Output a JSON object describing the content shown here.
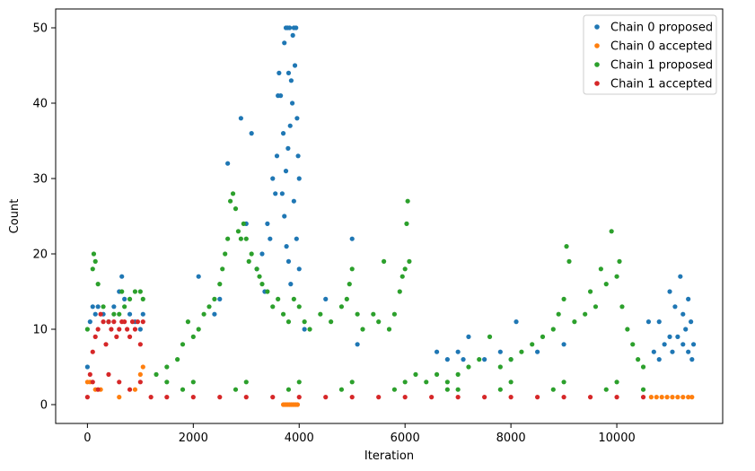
{
  "chart_data": {
    "type": "scatter",
    "xlabel": "Iteration",
    "ylabel": "Count",
    "xlim": [
      -600,
      12000
    ],
    "ylim": [
      -2.5,
      52.5
    ],
    "xticks": [
      0,
      2000,
      4000,
      6000,
      8000,
      10000
    ],
    "yticks": [
      0,
      10,
      20,
      30,
      40,
      50
    ],
    "legend_position": "top-right",
    "grid": false,
    "series": [
      {
        "name": "Chain 0 proposed",
        "color": "#1f77b4",
        "points": [
          [
            0,
            5
          ],
          [
            50,
            11
          ],
          [
            100,
            13
          ],
          [
            150,
            12
          ],
          [
            200,
            13
          ],
          [
            300,
            12
          ],
          [
            400,
            11
          ],
          [
            500,
            13
          ],
          [
            600,
            15
          ],
          [
            650,
            17
          ],
          [
            700,
            14
          ],
          [
            800,
            12
          ],
          [
            900,
            11
          ],
          [
            1000,
            10
          ],
          [
            1050,
            12
          ],
          [
            2100,
            17
          ],
          [
            2400,
            12
          ],
          [
            2500,
            14
          ],
          [
            2650,
            32
          ],
          [
            2900,
            38
          ],
          [
            3000,
            24
          ],
          [
            3100,
            36
          ],
          [
            3200,
            18
          ],
          [
            3300,
            20
          ],
          [
            3350,
            15
          ],
          [
            3400,
            24
          ],
          [
            3450,
            22
          ],
          [
            3500,
            30
          ],
          [
            3550,
            28
          ],
          [
            3580,
            33
          ],
          [
            3600,
            41
          ],
          [
            3620,
            44
          ],
          [
            3650,
            41
          ],
          [
            3700,
            36
          ],
          [
            3720,
            48
          ],
          [
            3750,
            50
          ],
          [
            3780,
            50
          ],
          [
            3800,
            44
          ],
          [
            3820,
            50
          ],
          [
            3850,
            43
          ],
          [
            3870,
            40
          ],
          [
            3880,
            49
          ],
          [
            3900,
            50
          ],
          [
            3920,
            45
          ],
          [
            3940,
            50
          ],
          [
            3960,
            38
          ],
          [
            3980,
            33
          ],
          [
            4000,
            30
          ],
          [
            3750,
            31
          ],
          [
            3790,
            34
          ],
          [
            3830,
            37
          ],
          [
            3680,
            28
          ],
          [
            3720,
            25
          ],
          [
            3760,
            21
          ],
          [
            3800,
            19
          ],
          [
            3840,
            16
          ],
          [
            3900,
            27
          ],
          [
            3950,
            22
          ],
          [
            4000,
            18
          ],
          [
            4100,
            10
          ],
          [
            4500,
            14
          ],
          [
            5000,
            22
          ],
          [
            5100,
            8
          ],
          [
            6600,
            7
          ],
          [
            6800,
            6
          ],
          [
            7000,
            7
          ],
          [
            7100,
            6
          ],
          [
            7200,
            9
          ],
          [
            7500,
            6
          ],
          [
            7800,
            7
          ],
          [
            8000,
            6
          ],
          [
            8100,
            11
          ],
          [
            8500,
            7
          ],
          [
            9000,
            8
          ],
          [
            10600,
            11
          ],
          [
            10800,
            11
          ],
          [
            11000,
            15
          ],
          [
            11100,
            13
          ],
          [
            11200,
            17
          ],
          [
            11250,
            12
          ],
          [
            11300,
            10
          ],
          [
            11350,
            14
          ],
          [
            11400,
            11
          ],
          [
            11450,
            8
          ],
          [
            10700,
            7
          ],
          [
            10800,
            6
          ],
          [
            10900,
            8
          ],
          [
            11000,
            9
          ],
          [
            11050,
            7
          ],
          [
            11150,
            9
          ],
          [
            11250,
            8
          ],
          [
            11350,
            7
          ],
          [
            11420,
            6
          ]
        ]
      },
      {
        "name": "Chain 0 accepted",
        "color": "#ff7f0e",
        "points": [
          [
            0,
            3
          ],
          [
            50,
            3
          ],
          [
            150,
            2
          ],
          [
            250,
            2
          ],
          [
            600,
            1
          ],
          [
            900,
            2
          ],
          [
            1000,
            4
          ],
          [
            1050,
            5
          ],
          [
            3700,
            0
          ],
          [
            3730,
            0
          ],
          [
            3760,
            0
          ],
          [
            3790,
            0
          ],
          [
            3820,
            0
          ],
          [
            3850,
            0
          ],
          [
            3880,
            0
          ],
          [
            3910,
            0
          ],
          [
            3940,
            0
          ],
          [
            3970,
            0
          ],
          [
            10650,
            1
          ],
          [
            10750,
            1
          ],
          [
            10850,
            1
          ],
          [
            10950,
            1
          ],
          [
            11050,
            1
          ],
          [
            11150,
            1
          ],
          [
            11250,
            1
          ],
          [
            11350,
            1
          ],
          [
            11420,
            1
          ]
        ]
      },
      {
        "name": "Chain 1 proposed",
        "color": "#2ca02c",
        "points": [
          [
            0,
            10
          ],
          [
            100,
            18
          ],
          [
            120,
            20
          ],
          [
            150,
            19
          ],
          [
            200,
            16
          ],
          [
            300,
            13
          ],
          [
            400,
            11
          ],
          [
            500,
            12
          ],
          [
            600,
            12
          ],
          [
            650,
            15
          ],
          [
            700,
            13
          ],
          [
            800,
            14
          ],
          [
            900,
            15
          ],
          [
            1000,
            15
          ],
          [
            1050,
            14
          ],
          [
            1300,
            4
          ],
          [
            1500,
            5
          ],
          [
            1700,
            6
          ],
          [
            1800,
            8
          ],
          [
            1900,
            11
          ],
          [
            2000,
            9
          ],
          [
            2100,
            10
          ],
          [
            2200,
            12
          ],
          [
            2300,
            13
          ],
          [
            2400,
            14
          ],
          [
            2500,
            16
          ],
          [
            2550,
            18
          ],
          [
            2600,
            20
          ],
          [
            2650,
            22
          ],
          [
            2700,
            27
          ],
          [
            2750,
            28
          ],
          [
            2800,
            26
          ],
          [
            2850,
            23
          ],
          [
            2900,
            22
          ],
          [
            2950,
            24
          ],
          [
            3000,
            22
          ],
          [
            3050,
            19
          ],
          [
            3100,
            20
          ],
          [
            3200,
            18
          ],
          [
            3250,
            17
          ],
          [
            3300,
            16
          ],
          [
            3400,
            15
          ],
          [
            3500,
            13
          ],
          [
            3600,
            14
          ],
          [
            3700,
            12
          ],
          [
            3800,
            11
          ],
          [
            3900,
            14
          ],
          [
            4000,
            13
          ],
          [
            4100,
            11
          ],
          [
            4200,
            10
          ],
          [
            4400,
            12
          ],
          [
            4600,
            11
          ],
          [
            4800,
            13
          ],
          [
            4900,
            14
          ],
          [
            4950,
            16
          ],
          [
            5000,
            18
          ],
          [
            5100,
            12
          ],
          [
            5200,
            10
          ],
          [
            5400,
            12
          ],
          [
            5500,
            11
          ],
          [
            5600,
            19
          ],
          [
            5700,
            10
          ],
          [
            5800,
            12
          ],
          [
            5900,
            15
          ],
          [
            5950,
            17
          ],
          [
            6000,
            18
          ],
          [
            6030,
            24
          ],
          [
            6050,
            27
          ],
          [
            6080,
            19
          ],
          [
            6200,
            4
          ],
          [
            6400,
            3
          ],
          [
            6600,
            4
          ],
          [
            6800,
            3
          ],
          [
            7000,
            4
          ],
          [
            7200,
            5
          ],
          [
            7400,
            6
          ],
          [
            7600,
            9
          ],
          [
            7800,
            5
          ],
          [
            8000,
            6
          ],
          [
            8200,
            7
          ],
          [
            8400,
            8
          ],
          [
            8600,
            9
          ],
          [
            8800,
            10
          ],
          [
            8900,
            12
          ],
          [
            9000,
            14
          ],
          [
            9050,
            21
          ],
          [
            9100,
            19
          ],
          [
            9200,
            11
          ],
          [
            9400,
            12
          ],
          [
            9500,
            15
          ],
          [
            9600,
            13
          ],
          [
            9700,
            18
          ],
          [
            9800,
            16
          ],
          [
            9900,
            23
          ],
          [
            10000,
            17
          ],
          [
            10050,
            19
          ],
          [
            10100,
            13
          ],
          [
            10200,
            10
          ],
          [
            10300,
            8
          ],
          [
            10400,
            6
          ],
          [
            10500,
            5
          ],
          [
            1500,
            3
          ],
          [
            2000,
            3
          ],
          [
            3000,
            3
          ],
          [
            4000,
            3
          ],
          [
            5000,
            3
          ],
          [
            6000,
            3
          ],
          [
            7000,
            2
          ],
          [
            8000,
            3
          ],
          [
            9000,
            3
          ],
          [
            10000,
            3
          ],
          [
            1800,
            2
          ],
          [
            2800,
            2
          ],
          [
            3800,
            2
          ],
          [
            4800,
            2
          ],
          [
            5800,
            2
          ],
          [
            6800,
            2
          ],
          [
            7800,
            2
          ],
          [
            8800,
            2
          ],
          [
            9800,
            2
          ],
          [
            10500,
            2
          ]
        ]
      },
      {
        "name": "Chain 1 accepted",
        "color": "#d62728",
        "points": [
          [
            0,
            1
          ],
          [
            50,
            4
          ],
          [
            100,
            7
          ],
          [
            150,
            9
          ],
          [
            200,
            10
          ],
          [
            250,
            12
          ],
          [
            300,
            11
          ],
          [
            350,
            8
          ],
          [
            400,
            11
          ],
          [
            450,
            10
          ],
          [
            500,
            11
          ],
          [
            550,
            9
          ],
          [
            600,
            10
          ],
          [
            650,
            11
          ],
          [
            700,
            11
          ],
          [
            750,
            10
          ],
          [
            800,
            9
          ],
          [
            850,
            11
          ],
          [
            900,
            10
          ],
          [
            950,
            11
          ],
          [
            1000,
            8
          ],
          [
            1050,
            11
          ],
          [
            100,
            3
          ],
          [
            200,
            2
          ],
          [
            400,
            4
          ],
          [
            600,
            3
          ],
          [
            800,
            2
          ],
          [
            1000,
            3
          ],
          [
            1200,
            1
          ],
          [
            1500,
            1
          ],
          [
            2000,
            1
          ],
          [
            2500,
            1
          ],
          [
            3000,
            1
          ],
          [
            3500,
            1
          ],
          [
            4000,
            1
          ],
          [
            4500,
            1
          ],
          [
            5000,
            1
          ],
          [
            5500,
            1
          ],
          [
            6000,
            1
          ],
          [
            6500,
            1
          ],
          [
            7000,
            1
          ],
          [
            7500,
            1
          ],
          [
            8000,
            1
          ],
          [
            8500,
            1
          ],
          [
            9000,
            1
          ],
          [
            9500,
            1
          ],
          [
            10000,
            1
          ],
          [
            10500,
            1
          ]
        ]
      }
    ],
    "legend": [
      "Chain 0 proposed",
      "Chain 0 accepted",
      "Chain 1 proposed",
      "Chain 1 accepted"
    ]
  }
}
